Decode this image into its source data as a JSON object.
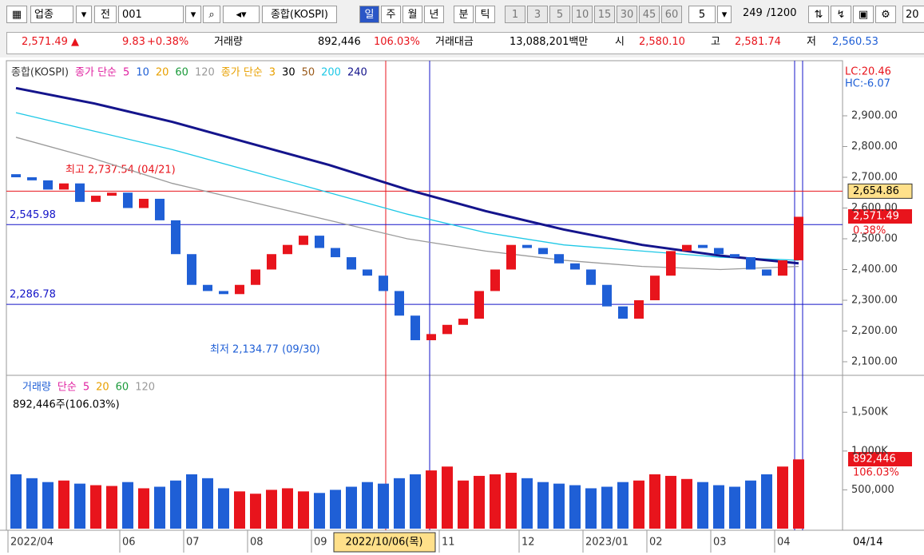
{
  "toolbar": {
    "market": "업종",
    "mode": "전",
    "code": "001",
    "name": "종합(KOSPI)",
    "periods": [
      "일",
      "주",
      "월",
      "년",
      "분",
      "틱"
    ],
    "minutes": [
      "1",
      "3",
      "5",
      "10",
      "15",
      "30",
      "45",
      "60"
    ],
    "interval": "5",
    "count": "249",
    "max_count": "/1200",
    "extra": "20"
  },
  "info_bar": {
    "price": "2,571.49 ▲",
    "change": "9.83",
    "change_pct": "+0.38%",
    "volume_label": "거래량",
    "volume": "892,446",
    "volume_pct": "106.03%",
    "amount_label": "거래대금",
    "amount": "13,088,201백만",
    "open_label": "시",
    "open": "2,580.10",
    "high_label": "고",
    "high": "2,581.74",
    "low_label": "저",
    "low": "2,560.53"
  },
  "chart_data": {
    "type": "candlestick",
    "legend": {
      "name": "종합(KOSPI)",
      "group1": "종가 단순",
      "group1_items": [
        "5",
        "10",
        "20",
        "60",
        "120"
      ],
      "group2": "종가 단순",
      "group2_items": [
        "3",
        "30",
        "50",
        "200",
        "240"
      ]
    },
    "up_color": "#e8141c",
    "down_color": "#1f5fd6",
    "categories": [
      "2022/04",
      null,
      null,
      null,
      null,
      null,
      null,
      "06",
      null,
      null,
      null,
      "07",
      null,
      null,
      null,
      "08",
      null,
      null,
      null,
      "09",
      null,
      null,
      null,
      null,
      null,
      null,
      null,
      "11",
      null,
      null,
      null,
      null,
      "12",
      null,
      null,
      null,
      "2023/01",
      null,
      null,
      null,
      "02",
      null,
      null,
      null,
      "03",
      null,
      null,
      null,
      "04",
      null
    ],
    "open": [
      2710,
      2700,
      2690,
      2660,
      2680,
      2620,
      2640,
      2650,
      2600,
      2630,
      2560,
      2450,
      2350,
      2330,
      2320,
      2350,
      2400,
      2450,
      2480,
      2510,
      2470,
      2440,
      2400,
      2380,
      2330,
      2250,
      2170,
      2190,
      2220,
      2240,
      2330,
      2400,
      2480,
      2470,
      2450,
      2420,
      2400,
      2350,
      2280,
      2240,
      2300,
      2380,
      2460,
      2480,
      2470,
      2450,
      2440,
      2400,
      2380,
      2430
    ],
    "close": [
      2700,
      2690,
      2660,
      2680,
      2620,
      2640,
      2650,
      2600,
      2630,
      2560,
      2450,
      2350,
      2330,
      2320,
      2350,
      2400,
      2450,
      2480,
      2510,
      2470,
      2440,
      2400,
      2380,
      2330,
      2250,
      2170,
      2190,
      2220,
      2240,
      2330,
      2400,
      2480,
      2470,
      2450,
      2420,
      2400,
      2350,
      2280,
      2240,
      2300,
      2380,
      2460,
      2480,
      2470,
      2450,
      2440,
      2400,
      2380,
      2430,
      2571.49
    ],
    "moving_averages": [
      {
        "color": "#9a9a9a",
        "values": [
          2830,
          2760,
          2680,
          2620,
          2560,
          2500,
          2460,
          2430,
          2410,
          2400,
          2410
        ]
      },
      {
        "color": "#1ec8e6",
        "values": [
          2910,
          2850,
          2790,
          2720,
          2650,
          2580,
          2520,
          2480,
          2460,
          2440,
          2430
        ]
      },
      {
        "color": "#14148c",
        "values": [
          2990,
          2940,
          2880,
          2810,
          2740,
          2660,
          2590,
          2530,
          2480,
          2445,
          2420
        ]
      }
    ],
    "ylim": [
      2061,
      3074
    ],
    "yticks": [
      {
        "value": 2100,
        "label": "2,100.00"
      },
      {
        "value": 2200,
        "label": "2,200.00"
      },
      {
        "value": 2300,
        "label": "2,300.00"
      },
      {
        "value": 2400,
        "label": "2,400.00"
      },
      {
        "value": 2500,
        "label": "2,500.00"
      },
      {
        "value": 2600,
        "label": "2,600.00"
      },
      {
        "value": 2700,
        "label": "2,700.00"
      },
      {
        "value": 2800,
        "label": "2,800.00"
      },
      {
        "value": 2900,
        "label": "2,900.00"
      }
    ],
    "reference_lines": [
      {
        "value": 2654.86,
        "label": "2,654.86",
        "color": "#e8141c"
      },
      {
        "value": 2545.98,
        "label": "2,545.98",
        "color": "#1414c8"
      },
      {
        "value": 2286.78,
        "label": "2,286.78",
        "color": "#1414c8"
      }
    ],
    "annotations": {
      "high": "최고 2,737.54 (04/21)",
      "low": "최저 2,134.77 (09/30)",
      "lc": "LC:20.46",
      "hc": "HC:-6.07",
      "last": "2,571.49",
      "last_pct": "0.38%"
    },
    "cursor_date": "2022/10/06(목)",
    "future_date": "04/14",
    "volume": {
      "legend": "거래량",
      "method": "단순",
      "items": [
        "5",
        "20",
        "60",
        "120"
      ],
      "info": "892,446주(106.03%)",
      "values": [
        700000,
        650000,
        600000,
        620000,
        580000,
        560000,
        550000,
        600000,
        520000,
        540000,
        620000,
        700000,
        650000,
        520000,
        480000,
        450000,
        500000,
        520000,
        480000,
        460000,
        500000,
        540000,
        600000,
        580000,
        650000,
        700000,
        750000,
        800000,
        620000,
        680000,
        700000,
        720000,
        650000,
        600000,
        580000,
        560000,
        520000,
        540000,
        600000,
        620000,
        700000,
        680000,
        640000,
        600000,
        560000,
        540000,
        620000,
        700000,
        800000,
        892446
      ],
      "last": "892,446",
      "last_pct": "106.03%",
      "ylim": [
        0,
        1955000
      ],
      "yticks": [
        {
          "value": 500000,
          "label": "500,000"
        },
        {
          "value": 1000000,
          "label": "1,000K"
        },
        {
          "value": 1500000,
          "label": "1,500K"
        }
      ]
    }
  }
}
